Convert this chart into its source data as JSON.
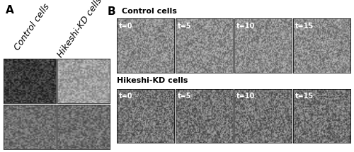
{
  "panel_A_label": "A",
  "panel_B_label": "B",
  "col_labels_A": [
    "Control cells",
    "Hikeshi-KD cells"
  ],
  "row_labels_B_top": "Control cells",
  "row_labels_B_bottom": "Hikeshi-KD cells",
  "time_labels_top": [
    "t=0",
    "t=5",
    "t=10",
    "t=15"
  ],
  "time_labels_bottom": [
    "t=0",
    "t=5",
    "t=10",
    "t=15"
  ],
  "bg_color": "#ffffff",
  "image_gray_dark": 60,
  "image_gray_light": 160,
  "image_gray_mid": 110,
  "border_color": "#000000",
  "text_color": "#000000",
  "label_fontsize": 9,
  "time_fontsize": 7,
  "panel_label_fontsize": 11,
  "section_label_fontsize": 8,
  "fig_width": 5.0,
  "fig_height": 2.15
}
